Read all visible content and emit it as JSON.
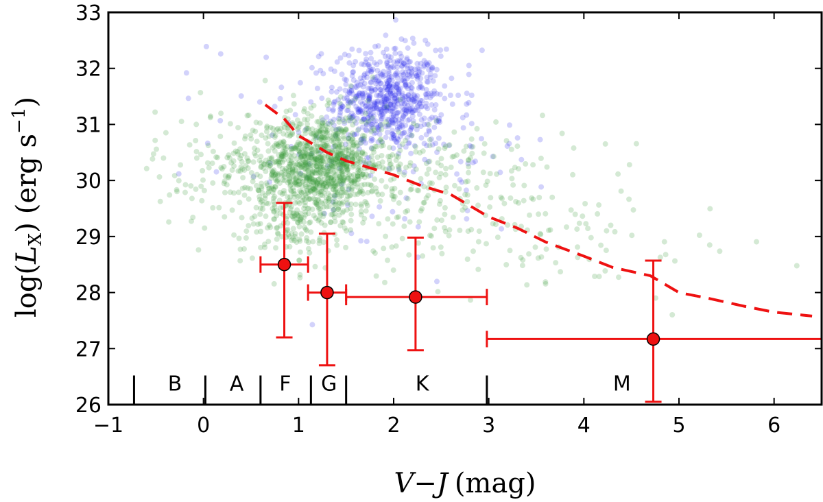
{
  "chart_data": {
    "type": "scatter",
    "xlim": [
      -1,
      6.5
    ],
    "ylim": [
      26,
      33
    ],
    "x_ticks": [
      -1,
      0,
      1,
      2,
      3,
      4,
      5,
      6
    ],
    "x_tick_labels": [
      "−1",
      "0",
      "1",
      "2",
      "3",
      "4",
      "5",
      "6"
    ],
    "y_ticks": [
      26,
      27,
      28,
      29,
      30,
      31,
      32,
      33
    ],
    "x_label": {
      "main": "V",
      "op": "−",
      "var": "J",
      "unit": "(mag)"
    },
    "y_label": {
      "fn": "log(",
      "var": "L",
      "sub": "X",
      "close": ")",
      "unit_open": "(erg s",
      "sup": "−1",
      "unit_close": ")"
    },
    "grid": false,
    "legend": "none",
    "colors": {
      "cloud_blue": "#3333ee",
      "cloud_green": "#3a9a3a",
      "fit": "#ee1111",
      "points": "#ee1111"
    },
    "series": [
      {
        "role": "blue-cloud",
        "clusters": [
          {
            "x_mean": 1.95,
            "x_sd": 0.28,
            "y_mean": 31.45,
            "y_sd": 0.45,
            "n": 620
          },
          {
            "x_mean": 1.5,
            "x_sd": 0.7,
            "y_mean": 30.9,
            "y_sd": 0.9,
            "n": 110
          },
          {
            "x_mean": 2.6,
            "x_sd": 0.5,
            "y_mean": 30.6,
            "y_sd": 0.8,
            "n": 50
          }
        ]
      },
      {
        "role": "green-cloud",
        "clusters": [
          {
            "x_mean": 1.25,
            "x_sd": 0.32,
            "y_mean": 30.3,
            "y_sd": 0.45,
            "n": 900
          },
          {
            "x_mean": 0.6,
            "x_sd": 0.55,
            "y_mean": 30.2,
            "y_sd": 0.55,
            "n": 230
          },
          {
            "x_mean": 2.4,
            "x_sd": 0.75,
            "y_mean": 29.9,
            "y_sd": 0.65,
            "n": 260
          },
          {
            "x_mean": 3.9,
            "x_sd": 0.9,
            "y_mean": 28.9,
            "y_sd": 0.5,
            "n": 70
          },
          {
            "x_mean": 0.9,
            "x_sd": 0.25,
            "y_mean": 29.3,
            "y_sd": 0.45,
            "n": 140
          }
        ]
      },
      {
        "role": "fit-line",
        "x": [
          0.65,
          0.85,
          1.0,
          1.1,
          1.3,
          1.5,
          1.7,
          2.0,
          2.3,
          2.6,
          3.0,
          3.3,
          3.6,
          4.0,
          4.3,
          4.7,
          5.0,
          5.3,
          5.7,
          6.0,
          6.4
        ],
        "y": [
          31.35,
          31.1,
          30.8,
          30.7,
          30.5,
          30.35,
          30.25,
          30.1,
          29.9,
          29.75,
          29.35,
          29.15,
          28.9,
          28.65,
          28.45,
          28.3,
          28.0,
          27.9,
          27.75,
          27.65,
          27.58
        ]
      },
      {
        "role": "binned-means",
        "points": [
          {
            "x": 0.85,
            "y": 28.5,
            "xerr": [
              0.6,
              1.1
            ],
            "yerr": [
              27.2,
              29.6
            ]
          },
          {
            "x": 1.3,
            "y": 28.0,
            "xerr": [
              1.1,
              1.5
            ],
            "yerr": [
              26.7,
              29.05
            ]
          },
          {
            "x": 2.23,
            "y": 27.92,
            "xerr": [
              1.5,
              2.98
            ],
            "yerr": [
              26.97,
              28.98
            ]
          },
          {
            "x": 4.73,
            "y": 27.17,
            "xerr": [
              2.98,
              6.5
            ],
            "yerr": [
              26.05,
              28.57
            ]
          }
        ]
      }
    ],
    "spectral_classes": {
      "boundaries": [
        -0.73,
        0.02,
        0.6,
        1.13,
        1.5,
        2.98
      ],
      "labels": [
        {
          "text": "B",
          "x": -0.3
        },
        {
          "text": "A",
          "x": 0.35
        },
        {
          "text": "F",
          "x": 0.86
        },
        {
          "text": "G",
          "x": 1.32
        },
        {
          "text": "K",
          "x": 2.3
        },
        {
          "text": "M",
          "x": 4.4
        }
      ],
      "label_y": 26.25,
      "tick_top": 26.52
    }
  }
}
